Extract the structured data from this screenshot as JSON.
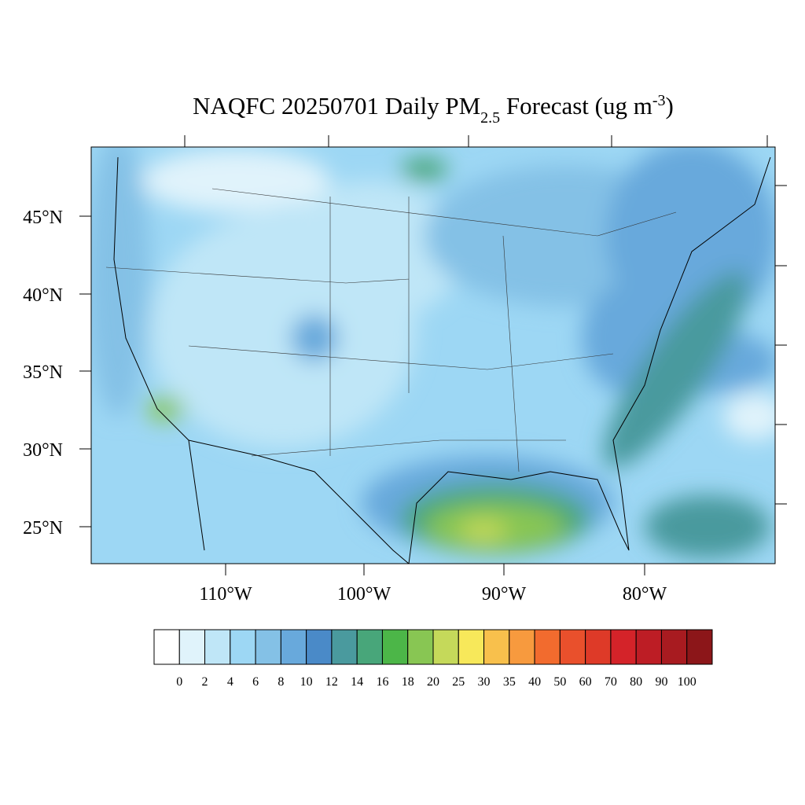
{
  "title": {
    "main": "NAQFC 20250701 Daily PM",
    "sub": "2.5",
    "middle": " Forecast (ug m",
    "sup": "-3",
    "end": ")"
  },
  "map": {
    "lat_labels": [
      "45°N",
      "40°N",
      "35°N",
      "30°N",
      "25°N"
    ],
    "lon_labels": [
      "110°W",
      "100°W",
      "90°W",
      "80°W"
    ]
  },
  "colorbar": {
    "colors": [
      "#ffffff",
      "#e0f3fb",
      "#bfe6f7",
      "#9dd7f4",
      "#84c1e6",
      "#68a9dc",
      "#4a8ac8",
      "#4a9a9e",
      "#48a67a",
      "#4cb648",
      "#88c653",
      "#c5d95a",
      "#f7e85a",
      "#f8c04c",
      "#f79a3e",
      "#f26b2e",
      "#e9502c",
      "#de3a28",
      "#d42329",
      "#bd1d25",
      "#a81b20",
      "#8c1619"
    ],
    "labels": [
      0,
      2,
      4,
      6,
      8,
      10,
      12,
      14,
      16,
      18,
      20,
      25,
      30,
      35,
      40,
      50,
      60,
      70,
      80,
      90,
      100
    ]
  }
}
